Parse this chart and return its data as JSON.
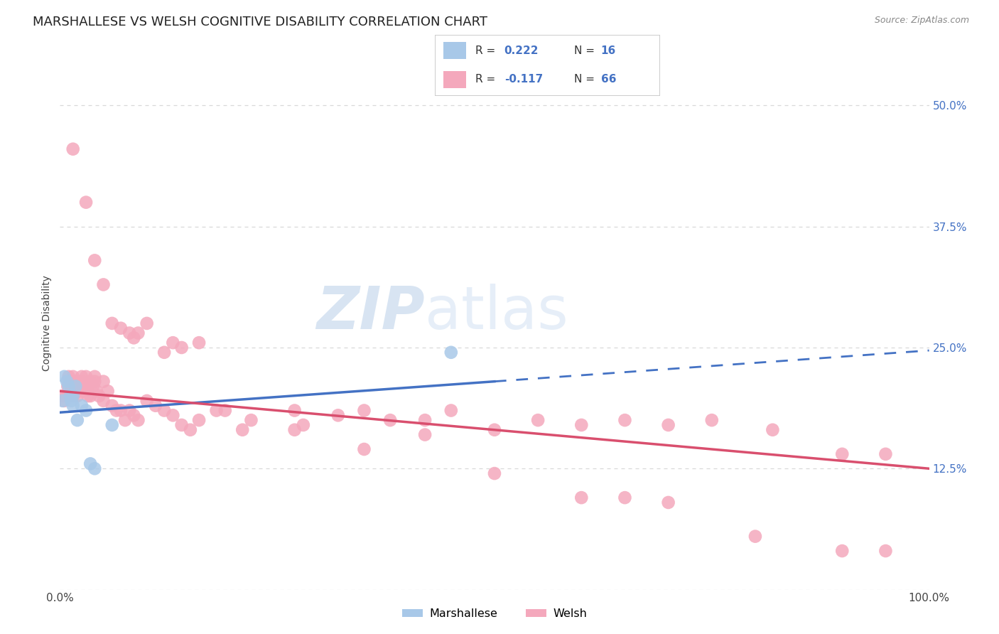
{
  "title": "MARSHALLESE VS WELSH COGNITIVE DISABILITY CORRELATION CHART",
  "source": "Source: ZipAtlas.com",
  "ylabel": "Cognitive Disability",
  "xlim": [
    0.0,
    1.0
  ],
  "ylim": [
    0.0,
    0.55
  ],
  "yticks": [
    0.0,
    0.125,
    0.25,
    0.375,
    0.5
  ],
  "ytick_labels": [
    "",
    "12.5%",
    "25.0%",
    "37.5%",
    "50.0%"
  ],
  "xtick_labels": [
    "0.0%",
    "100.0%"
  ],
  "bg_color": "#ffffff",
  "grid_color": "#d8d8d8",
  "marshallese_color": "#a8c8e8",
  "welsh_color": "#f4a8bc",
  "marshallese_line_color": "#4472c4",
  "welsh_line_color": "#d94f6e",
  "watermark_color": "#ccddf0",
  "tick_color": "#4472c4",
  "text_color": "#444444",
  "marshallese_x": [
    0.003,
    0.005,
    0.008,
    0.01,
    0.012,
    0.013,
    0.015,
    0.015,
    0.018,
    0.02,
    0.025,
    0.03,
    0.035,
    0.04,
    0.06,
    0.45
  ],
  "marshallese_y": [
    0.195,
    0.22,
    0.215,
    0.21,
    0.2,
    0.195,
    0.2,
    0.19,
    0.21,
    0.175,
    0.19,
    0.185,
    0.13,
    0.125,
    0.17,
    0.245
  ],
  "welsh_x": [
    0.003,
    0.005,
    0.007,
    0.009,
    0.01,
    0.012,
    0.013,
    0.015,
    0.015,
    0.017,
    0.018,
    0.02,
    0.02,
    0.022,
    0.025,
    0.025,
    0.027,
    0.028,
    0.03,
    0.03,
    0.032,
    0.033,
    0.035,
    0.035,
    0.038,
    0.04,
    0.04,
    0.042,
    0.045,
    0.05,
    0.05,
    0.055,
    0.06,
    0.065,
    0.07,
    0.075,
    0.08,
    0.085,
    0.09,
    0.1,
    0.11,
    0.12,
    0.13,
    0.14,
    0.15,
    0.16,
    0.18,
    0.19,
    0.21,
    0.22,
    0.27,
    0.28,
    0.32,
    0.35,
    0.38,
    0.42,
    0.45,
    0.5,
    0.55,
    0.6,
    0.65,
    0.7,
    0.75,
    0.82,
    0.9,
    0.95
  ],
  "welsh_y": [
    0.2,
    0.195,
    0.2,
    0.21,
    0.22,
    0.215,
    0.21,
    0.22,
    0.2,
    0.215,
    0.205,
    0.215,
    0.2,
    0.205,
    0.22,
    0.215,
    0.205,
    0.21,
    0.21,
    0.22,
    0.2,
    0.205,
    0.215,
    0.2,
    0.21,
    0.215,
    0.22,
    0.205,
    0.2,
    0.215,
    0.195,
    0.205,
    0.19,
    0.185,
    0.185,
    0.175,
    0.185,
    0.18,
    0.175,
    0.195,
    0.19,
    0.185,
    0.18,
    0.17,
    0.165,
    0.175,
    0.185,
    0.185,
    0.165,
    0.175,
    0.185,
    0.17,
    0.18,
    0.185,
    0.175,
    0.175,
    0.185,
    0.165,
    0.175,
    0.17,
    0.175,
    0.17,
    0.175,
    0.165,
    0.14,
    0.14
  ],
  "welsh_outlier_x": [
    0.015,
    0.03,
    0.04,
    0.05,
    0.06,
    0.07,
    0.08,
    0.085,
    0.09,
    0.1,
    0.12,
    0.13,
    0.14,
    0.16,
    0.27,
    0.35,
    0.42,
    0.5,
    0.6,
    0.65,
    0.7,
    0.8,
    0.9,
    0.95
  ],
  "welsh_outlier_y": [
    0.455,
    0.4,
    0.34,
    0.315,
    0.275,
    0.27,
    0.265,
    0.26,
    0.265,
    0.275,
    0.245,
    0.255,
    0.25,
    0.255,
    0.165,
    0.145,
    0.16,
    0.12,
    0.095,
    0.095,
    0.09,
    0.055,
    0.04,
    0.04
  ],
  "marshallese_line_x0": 0.0,
  "marshallese_line_y0": 0.183,
  "marshallese_line_x1": 0.5,
  "marshallese_line_y1": 0.215,
  "marshallese_line_x2": 1.0,
  "marshallese_line_y2": 0.247,
  "welsh_line_x0": 0.0,
  "welsh_line_y0": 0.205,
  "welsh_line_x1": 1.0,
  "welsh_line_y1": 0.125,
  "title_fontsize": 13,
  "axis_label_fontsize": 10,
  "tick_fontsize": 11
}
